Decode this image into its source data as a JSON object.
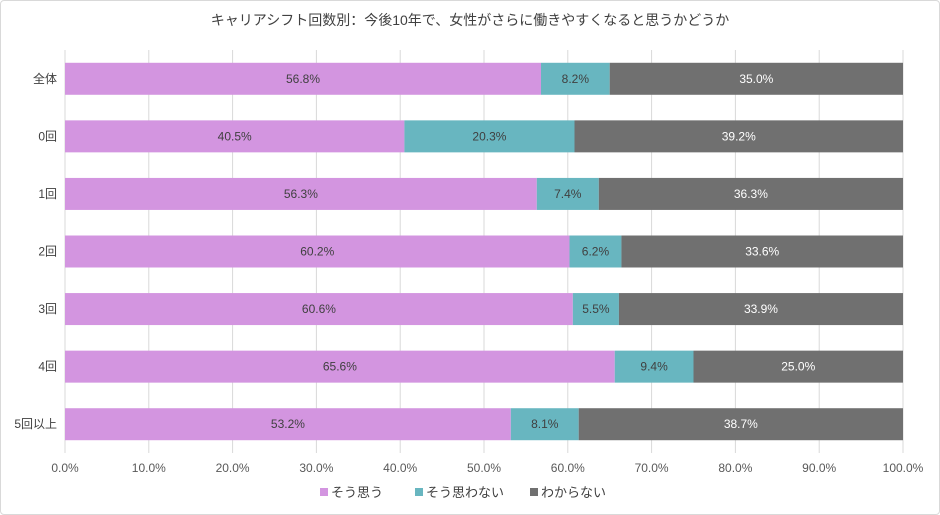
{
  "chart_data": {
    "type": "bar",
    "orientation": "horizontal",
    "stacked": true,
    "title": "キャリアシフト回数別：今後10年で、女性がさらに働きやすくなると思うかどうか",
    "categories": [
      "全体",
      "0回",
      "1回",
      "2回",
      "3回",
      "4回",
      "5回以上"
    ],
    "series": [
      {
        "name": "そう思う",
        "color": "#D395E0",
        "values": [
          56.8,
          40.5,
          56.3,
          60.2,
          60.6,
          65.6,
          53.2
        ]
      },
      {
        "name": "そう思わない",
        "color": "#68B6C0",
        "values": [
          8.2,
          20.3,
          7.4,
          6.2,
          5.5,
          9.4,
          8.1
        ]
      },
      {
        "name": "わからない",
        "color": "#707070",
        "values": [
          35.0,
          39.2,
          36.3,
          33.6,
          33.9,
          25.0,
          38.7
        ]
      }
    ],
    "xlim": [
      0,
      100
    ],
    "xticks": [
      "0.0%",
      "10.0%",
      "20.0%",
      "30.0%",
      "40.0%",
      "50.0%",
      "60.0%",
      "70.0%",
      "80.0%",
      "90.0%",
      "100.0%"
    ],
    "grid": true,
    "legend": "bottom"
  }
}
